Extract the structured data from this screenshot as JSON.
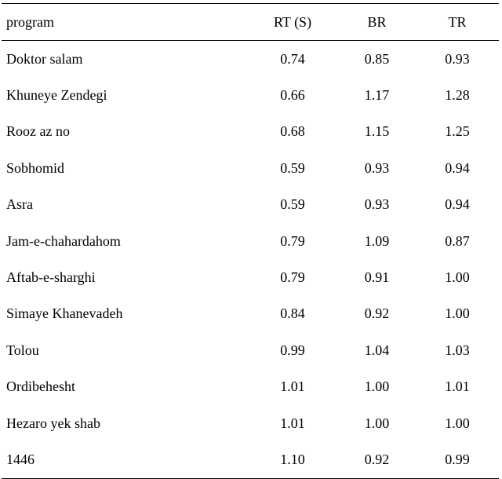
{
  "table": {
    "columns": [
      "program",
      "RT (S)",
      "BR",
      "TR"
    ],
    "rows": [
      [
        "Doktor salam",
        "0.74",
        "0.85",
        "0.93"
      ],
      [
        "Khuneye Zendegi",
        "0.66",
        "1.17",
        "1.28"
      ],
      [
        "Rooz az no",
        "0.68",
        "1.15",
        "1.25"
      ],
      [
        "Sobhomid",
        "0.59",
        "0.93",
        "0.94"
      ],
      [
        "Asra",
        "0.59",
        "0.93",
        "0.94"
      ],
      [
        "Jam-e-chahardahom",
        "0.79",
        "1.09",
        "0.87"
      ],
      [
        "Aftab-e-sharghi",
        "0.79",
        "0.91",
        "1.00"
      ],
      [
        "Simaye Khanevadeh",
        "0.84",
        "0.92",
        "1.00"
      ],
      [
        "Tolou",
        "0.99",
        "1.04",
        "1.03"
      ],
      [
        "Ordibehesht",
        "1.01",
        "1.00",
        "1.01"
      ],
      [
        "Hezaro yek shab",
        "1.01",
        "1.00",
        "1.00"
      ],
      [
        "1446",
        "1.10",
        "0.92",
        "0.99"
      ]
    ]
  }
}
